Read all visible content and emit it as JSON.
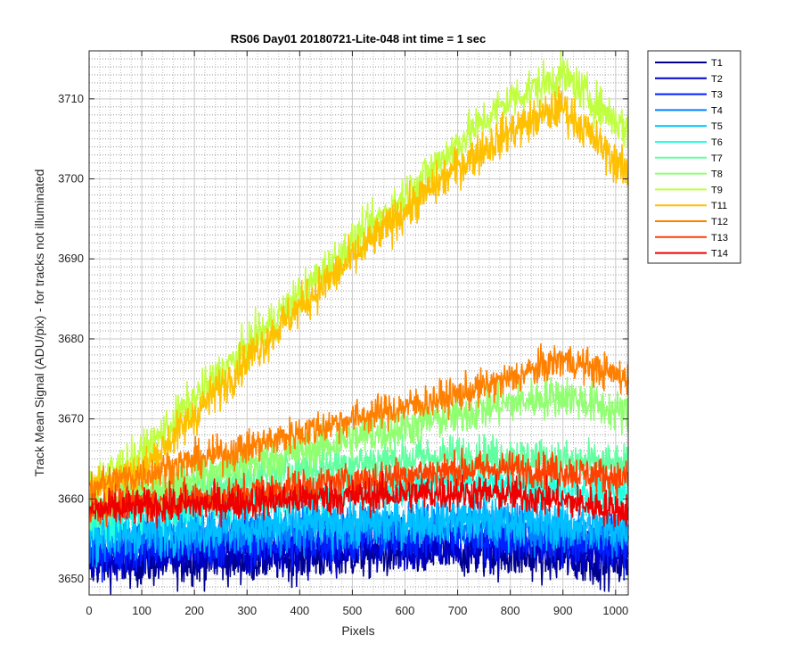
{
  "chart_data": {
    "type": "line",
    "title": "RS06 Day01 20180721-Lite-048 int time = 1 sec",
    "xlabel": "Pixels",
    "ylabel": "Track Mean Signal (ADU/pix) - for tracks not illuminated",
    "xlim": [
      0,
      1024
    ],
    "ylim": [
      3648,
      3716
    ],
    "x_ticks": [
      0,
      100,
      200,
      300,
      400,
      500,
      600,
      700,
      800,
      900,
      1000
    ],
    "y_ticks": [
      3650,
      3660,
      3670,
      3680,
      3690,
      3700,
      3710
    ],
    "grid": "major and minor, dotted",
    "legend_position": "outside-right-top",
    "x_sample": [
      0,
      100,
      200,
      300,
      400,
      500,
      600,
      700,
      800,
      900,
      1024
    ],
    "series": [
      {
        "name": "T1",
        "color": "#00008f",
        "noise": 1.5,
        "values": [
          3652,
          3652,
          3652.3,
          3652.5,
          3652.7,
          3653,
          3653.2,
          3653.3,
          3653,
          3652.5,
          3652
        ]
      },
      {
        "name": "T2",
        "color": "#0000c8",
        "noise": 1.5,
        "values": [
          3652.5,
          3653,
          3653.3,
          3653.5,
          3653.7,
          3654,
          3654.3,
          3654.5,
          3654.2,
          3653.8,
          3653.3
        ]
      },
      {
        "name": "T3",
        "color": "#0020ff",
        "noise": 1.5,
        "values": [
          3653.5,
          3654,
          3654.3,
          3654.5,
          3654.7,
          3655,
          3655.3,
          3655.5,
          3655.2,
          3654.8,
          3654.3
        ]
      },
      {
        "name": "T4",
        "color": "#0080ff",
        "noise": 1.5,
        "values": [
          3655,
          3655.5,
          3655.8,
          3656,
          3656.2,
          3656.5,
          3656.7,
          3657,
          3656.7,
          3656.2,
          3655.7
        ]
      },
      {
        "name": "T5",
        "color": "#00c0ff",
        "noise": 1.5,
        "values": [
          3655.5,
          3656,
          3656.3,
          3656.5,
          3656.8,
          3657,
          3657.2,
          3657.5,
          3657.2,
          3656.8,
          3656.3
        ]
      },
      {
        "name": "T6",
        "color": "#20ffe0",
        "noise": 1.3,
        "values": [
          3657.5,
          3658.5,
          3659.2,
          3659.8,
          3660.4,
          3661,
          3661.5,
          3662,
          3661.8,
          3661.2,
          3660.5
        ]
      },
      {
        "name": "T7",
        "color": "#60ffa0",
        "noise": 1.3,
        "values": [
          3659,
          3660.5,
          3661.6,
          3662.6,
          3663.6,
          3664.5,
          3665,
          3665.5,
          3665.3,
          3664.8,
          3664
        ]
      },
      {
        "name": "T8",
        "color": "#90ff70",
        "noise": 1.3,
        "values": [
          3659.5,
          3661,
          3662.7,
          3664.3,
          3665.9,
          3667.5,
          3669,
          3670.5,
          3672,
          3673,
          3670.5
        ]
      },
      {
        "name": "T9",
        "color": "#c0ff40",
        "noise": 1.3,
        "values": [
          3662,
          3665.5,
          3672.5,
          3679,
          3685.5,
          3692,
          3698,
          3704.5,
          3710,
          3713,
          3706
        ]
      },
      {
        "name": "T11",
        "color": "#ffc000",
        "noise": 1.3,
        "values": [
          3661.5,
          3663.5,
          3670.5,
          3677.5,
          3684,
          3690,
          3696,
          3701.5,
          3706,
          3709,
          3700.5
        ]
      },
      {
        "name": "T12",
        "color": "#ff8000",
        "noise": 1.1,
        "values": [
          3661.5,
          3663,
          3664.8,
          3666.4,
          3668.3,
          3670,
          3671.5,
          3673,
          3675,
          3677.5,
          3675
        ]
      },
      {
        "name": "T13",
        "color": "#ff4000",
        "noise": 1.1,
        "values": [
          3659,
          3659.5,
          3660.1,
          3660.8,
          3661.5,
          3662.3,
          3663,
          3663.7,
          3663.8,
          3663.5,
          3662.5
        ]
      },
      {
        "name": "T14",
        "color": "#ee0000",
        "noise": 1.1,
        "values": [
          3658.5,
          3659,
          3659.3,
          3659.6,
          3660,
          3660.3,
          3660.6,
          3660.8,
          3660.6,
          3659.8,
          3658.5
        ]
      }
    ]
  }
}
